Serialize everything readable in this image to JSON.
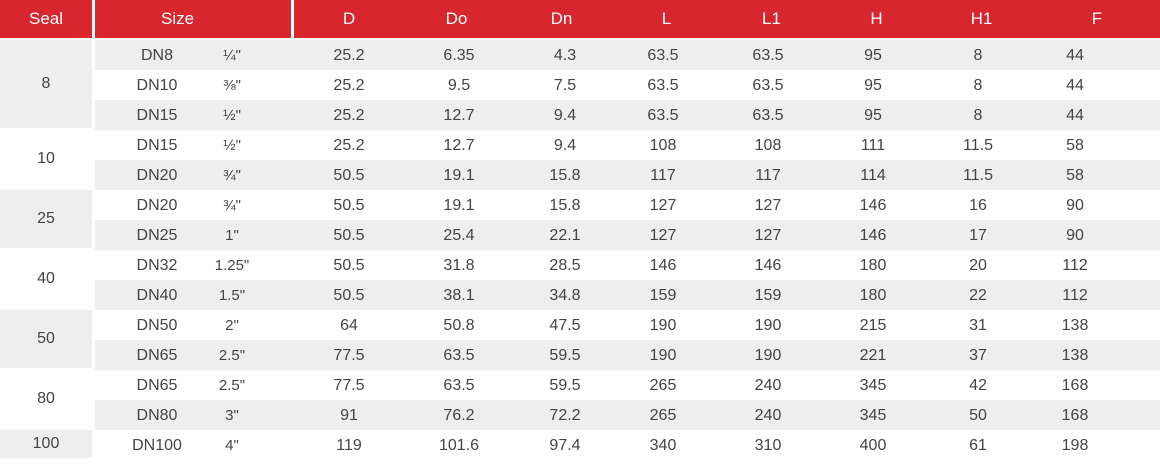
{
  "headers": [
    "Seal",
    "Size",
    "D",
    "Do",
    "Dn",
    "L",
    "L1",
    "H",
    "H1",
    "F"
  ],
  "seals": [
    {
      "label": "8",
      "rows": 3
    },
    {
      "label": "10",
      "rows": 2
    },
    {
      "label": "25",
      "rows": 2
    },
    {
      "label": "40",
      "rows": 2
    },
    {
      "label": "50",
      "rows": 2
    },
    {
      "label": "80",
      "rows": 2
    },
    {
      "label": "100",
      "rows": 1
    }
  ],
  "rows": [
    {
      "dn": "DN8",
      "inch": "¼\"",
      "D": "25.2",
      "Do": "6.35",
      "Dn": "4.3",
      "L": "63.5",
      "L1": "63.5",
      "H": "95",
      "H1": "8",
      "F": "44"
    },
    {
      "dn": "DN10",
      "inch": "⅜\"",
      "D": "25.2",
      "Do": "9.5",
      "Dn": "7.5",
      "L": "63.5",
      "L1": "63.5",
      "H": "95",
      "H1": "8",
      "F": "44"
    },
    {
      "dn": "DN15",
      "inch": "½\"",
      "D": "25.2",
      "Do": "12.7",
      "Dn": "9.4",
      "L": "63.5",
      "L1": "63.5",
      "H": "95",
      "H1": "8",
      "F": "44"
    },
    {
      "dn": "DN15",
      "inch": "½\"",
      "D": "25.2",
      "Do": "12.7",
      "Dn": "9.4",
      "L": "108",
      "L1": "108",
      "H": "111",
      "H1": "11.5",
      "F": "58"
    },
    {
      "dn": "DN20",
      "inch": "¾\"",
      "D": "50.5",
      "Do": "19.1",
      "Dn": "15.8",
      "L": "117",
      "L1": "117",
      "H": "114",
      "H1": "11.5",
      "F": "58"
    },
    {
      "dn": "DN20",
      "inch": "¾\"",
      "D": "50.5",
      "Do": "19.1",
      "Dn": "15.8",
      "L": "127",
      "L1": "127",
      "H": "146",
      "H1": "16",
      "F": "90"
    },
    {
      "dn": "DN25",
      "inch": "1\"",
      "D": "50.5",
      "Do": "25.4",
      "Dn": "22.1",
      "L": "127",
      "L1": "127",
      "H": "146",
      "H1": "17",
      "F": "90"
    },
    {
      "dn": "DN32",
      "inch": "1.25\"",
      "D": "50.5",
      "Do": "31.8",
      "Dn": "28.5",
      "L": "146",
      "L1": "146",
      "H": "180",
      "H1": "20",
      "F": "112"
    },
    {
      "dn": "DN40",
      "inch": "1.5\"",
      "D": "50.5",
      "Do": "38.1",
      "Dn": "34.8",
      "L": "159",
      "L1": "159",
      "H": "180",
      "H1": "22",
      "F": "112"
    },
    {
      "dn": "DN50",
      "inch": "2\"",
      "D": "64",
      "Do": "50.8",
      "Dn": "47.5",
      "L": "190",
      "L1": "190",
      "H": "215",
      "H1": "31",
      "F": "138"
    },
    {
      "dn": "DN65",
      "inch": "2.5\"",
      "D": "77.5",
      "Do": "63.5",
      "Dn": "59.5",
      "L": "190",
      "L1": "190",
      "H": "221",
      "H1": "37",
      "F": "138"
    },
    {
      "dn": "DN65",
      "inch": "2.5\"",
      "D": "77.5",
      "Do": "63.5",
      "Dn": "59.5",
      "L": "265",
      "L1": "240",
      "H": "345",
      "H1": "42",
      "F": "168"
    },
    {
      "dn": "DN80",
      "inch": "3\"",
      "D": "91",
      "Do": "76.2",
      "Dn": "72.2",
      "L": "265",
      "L1": "240",
      "H": "345",
      "H1": "50",
      "F": "168"
    },
    {
      "dn": "DN100",
      "inch": "4\"",
      "D": "119",
      "Do": "101.6",
      "Dn": "97.4",
      "L": "340",
      "L1": "310",
      "H": "400",
      "H1": "61",
      "F": "198"
    }
  ],
  "colors": {
    "header_bg": "#d7262e",
    "stripe": "#eeeeef",
    "text": "#444444"
  }
}
